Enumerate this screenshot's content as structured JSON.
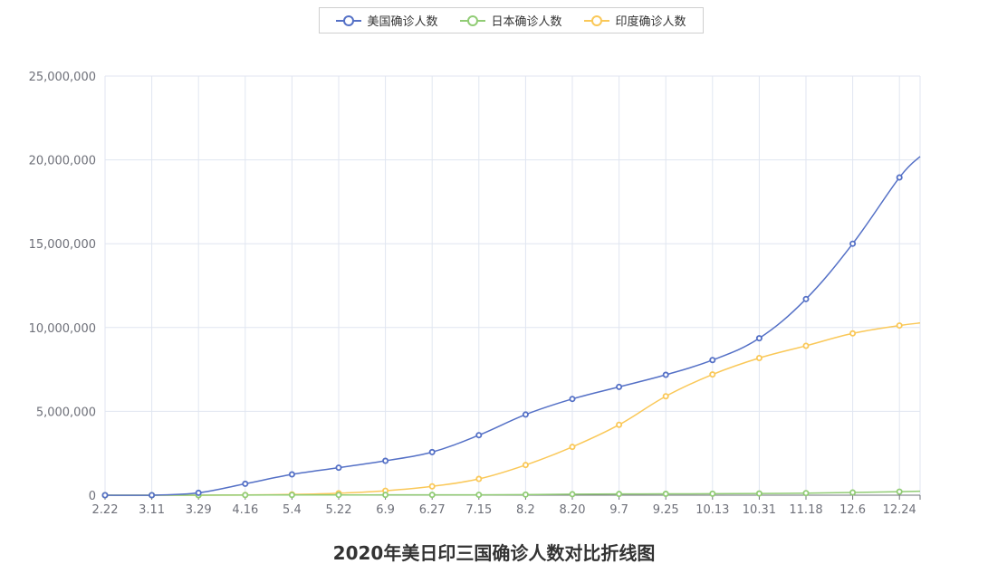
{
  "chart_data": {
    "type": "line",
    "title": "2020年美日印三国确诊人数对比折线图",
    "legend_position": "top-center",
    "grid": true,
    "ylim": [
      0,
      25000000
    ],
    "y_ticks": [
      "0",
      "5,000,000",
      "10,000,000",
      "15,000,000",
      "20,000,000",
      "25,000,000"
    ],
    "y_tick_values": [
      0,
      5000000,
      10000000,
      15000000,
      20000000,
      25000000
    ],
    "categories": [
      "2.22",
      "3.11",
      "3.29",
      "4.16",
      "5.4",
      "5.22",
      "6.9",
      "6.27",
      "7.15",
      "8.2",
      "8.20",
      "9.7",
      "9.25",
      "10.13",
      "10.31",
      "11.18",
      "12.6",
      "12.24"
    ],
    "series": [
      {
        "name": "美国确诊人数",
        "color": "#5470c6",
        "values": [
          35,
          1300,
          140000,
          680000,
          1240000,
          1640000,
          2050000,
          2570000,
          3580000,
          4810000,
          5740000,
          6460000,
          7180000,
          8060000,
          9360000,
          11700000,
          15000000,
          18950000
        ],
        "end_value": 20200000
      },
      {
        "name": "日本确诊人数",
        "color": "#91cc75",
        "values": [
          130,
          600,
          1900,
          9300,
          15500,
          16500,
          17200,
          18500,
          23500,
          37000,
          58000,
          72000,
          79000,
          88000,
          100000,
          123000,
          159000,
          209000
        ],
        "end_value": 235000
      },
      {
        "name": "印度确诊人数",
        "color": "#fac858",
        "values": [
          3,
          62,
          1000,
          13000,
          46000,
          118000,
          266000,
          528000,
          970000,
          1800000,
          2880000,
          4200000,
          5900000,
          7200000,
          8180000,
          8910000,
          9650000,
          10120000
        ],
        "end_value": 10270000
      }
    ]
  }
}
